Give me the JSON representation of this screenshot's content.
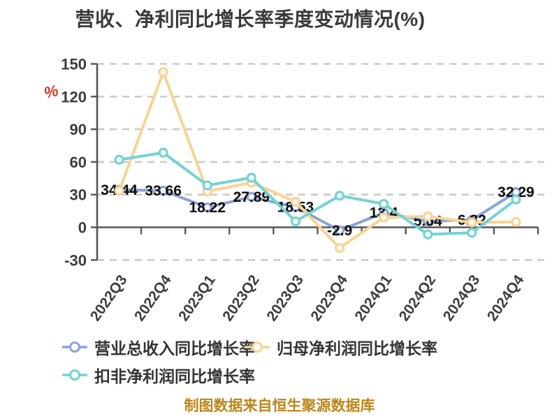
{
  "title": "营收、净利同比增长率季度变动情况(%)",
  "footer": "制图数据来自恒生聚源数据库",
  "chart_data": {
    "type": "line",
    "title": "营收、净利同比增长率季度变动情况(%)",
    "unit_label": "%",
    "xlabel": "",
    "ylabel": "%",
    "ylim": [
      -30,
      150
    ],
    "y_ticks": [
      150,
      120,
      90,
      60,
      30,
      0,
      -30
    ],
    "grid": "horizontal dashed",
    "legend_position": "bottom-left two rows",
    "categories": [
      "2022Q3",
      "2022Q4",
      "2023Q1",
      "2023Q2",
      "2023Q3",
      "2023Q4",
      "2024Q1",
      "2024Q2",
      "2024Q3",
      "2024Q4"
    ],
    "series": [
      {
        "name": "营业总收入同比增长率",
        "color": "#8ba3d6",
        "values": [
          34.44,
          33.66,
          18.22,
          27.89,
          18.53,
          -2.9,
          13.4,
          5.64,
          6.82,
          32.29
        ],
        "point_labels": [
          "34.44",
          "33.66",
          "18.22",
          "27.89",
          "18.53",
          "-2.9",
          "13.4",
          "5.64",
          "6.82",
          "32.29"
        ]
      },
      {
        "name": "归母净利润同比增长率",
        "color": "#f8d392",
        "values": [
          33.5,
          142.5,
          33,
          41,
          23.5,
          -19,
          9,
          10,
          4.5,
          5
        ]
      },
      {
        "name": "扣非净利润同比增长率",
        "color": "#74d3d2",
        "values": [
          62,
          68.5,
          38.5,
          45.5,
          5.5,
          29,
          21.5,
          -6.5,
          -5,
          25.5
        ]
      }
    ]
  },
  "colors": {
    "title_text": "#3a3a3a",
    "axis": "#565656",
    "gridline": "#cbcbcb",
    "tick_label": "#3d3d3d",
    "data_label": "#0d0d0d",
    "unit_red": "#df352c",
    "footer_orange": "#bd861b"
  }
}
